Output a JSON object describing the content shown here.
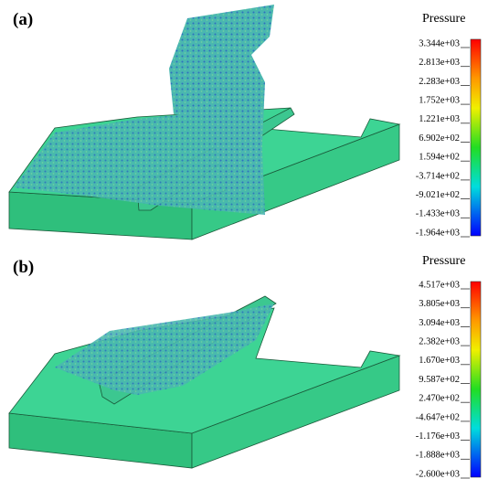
{
  "panels": [
    {
      "label": "(a)",
      "legend": {
        "title": "Pressure",
        "ticks": [
          "3.344e+03",
          "2.813e+03",
          "2.283e+03",
          "1.752e+03",
          "1.221e+03",
          "6.902e+02",
          "1.594e+02",
          "-3.714e+02",
          "-9.021e+02",
          "-1.433e+03",
          "-1.964e+03"
        ]
      }
    },
    {
      "label": "(b)",
      "legend": {
        "title": "Pressure",
        "ticks": [
          "4.517e+03",
          "3.805e+03",
          "3.094e+03",
          "2.382e+03",
          "1.670e+03",
          "9.587e+02",
          "2.470e+02",
          "-4.647e+02",
          "-1.176e+03",
          "-1.888e+03",
          "-2.600e+03"
        ]
      }
    }
  ]
}
